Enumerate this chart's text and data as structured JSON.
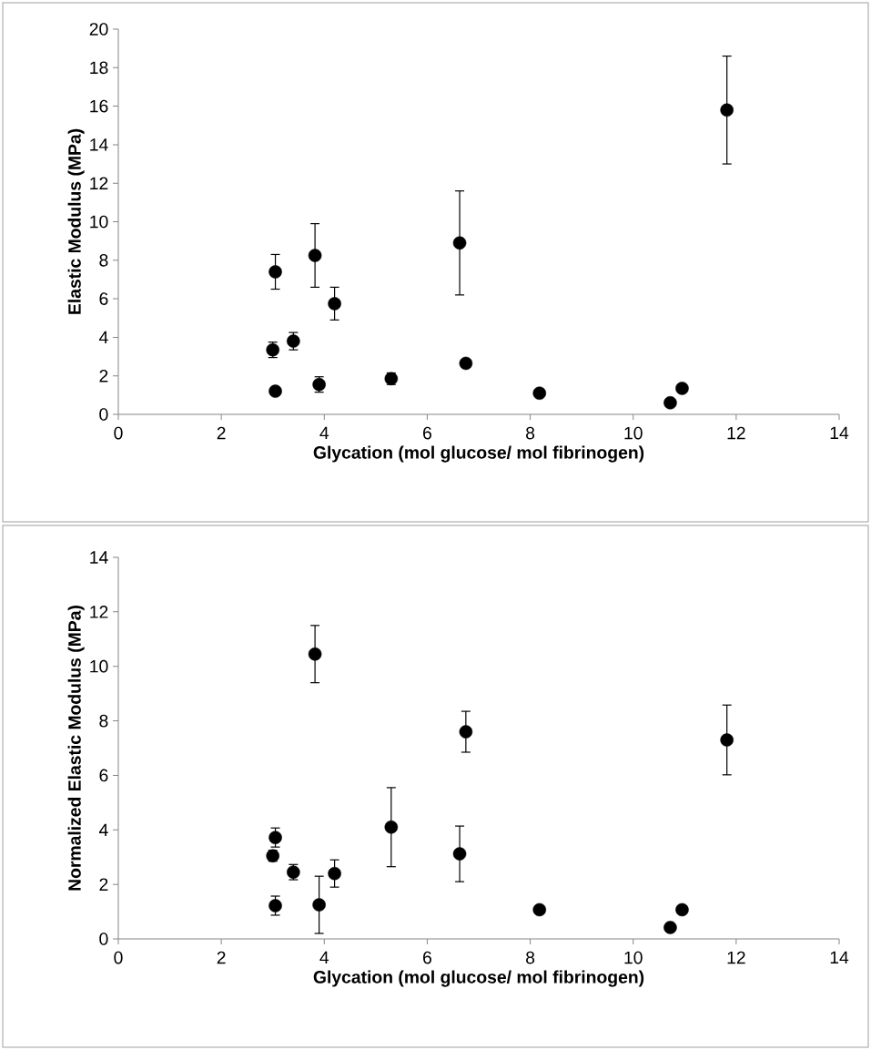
{
  "chart_data": [
    {
      "type": "scatter",
      "xlabel": "Glycation (mol glucose/ mol fibrinogen)",
      "ylabel": "Elastic Modulus (MPa)",
      "color": "#000000",
      "marker": "circle",
      "grid": false,
      "x": [
        3.0,
        3.05,
        3.05,
        3.4,
        3.82,
        3.9,
        4.2,
        5.3,
        6.63,
        6.75,
        8.18,
        10.72,
        10.95,
        11.82
      ],
      "values": [
        3.35,
        1.2,
        7.4,
        3.8,
        8.25,
        1.55,
        5.75,
        1.85,
        8.9,
        2.65,
        1.1,
        0.6,
        1.35,
        15.8
      ],
      "errors": [
        0.4,
        null,
        0.9,
        0.45,
        1.65,
        0.4,
        0.85,
        0.3,
        2.7,
        null,
        null,
        null,
        null,
        2.8
      ],
      "xlim": [
        0,
        14
      ],
      "ylim": [
        0,
        20
      ],
      "xticks": [
        0,
        2,
        4,
        6,
        8,
        10,
        12,
        14
      ],
      "yticks": [
        0,
        2,
        4,
        6,
        8,
        10,
        12,
        14,
        16,
        18,
        20
      ]
    },
    {
      "type": "scatter",
      "xlabel": "Glycation (mol glucose/ mol fibrinogen)",
      "ylabel": "Normalized Elastic Modulus (MPa)",
      "color": "#000000",
      "marker": "circle",
      "grid": false,
      "x": [
        3.0,
        3.05,
        3.05,
        3.4,
        3.82,
        3.9,
        4.2,
        5.3,
        6.63,
        6.75,
        8.18,
        10.72,
        10.95,
        11.82
      ],
      "values": [
        3.05,
        1.22,
        3.72,
        2.45,
        10.45,
        1.25,
        2.4,
        4.1,
        3.12,
        7.6,
        1.07,
        0.42,
        1.07,
        7.3
      ],
      "errors": [
        0.2,
        0.35,
        0.35,
        0.28,
        1.05,
        1.05,
        0.5,
        1.45,
        1.02,
        0.75,
        0.12,
        null,
        0.15,
        1.28
      ],
      "xlim": [
        0,
        14
      ],
      "ylim": [
        0,
        14
      ],
      "xticks": [
        0,
        2,
        4,
        6,
        8,
        10,
        12,
        14
      ],
      "yticks": [
        0,
        2,
        4,
        6,
        8,
        10,
        12,
        14
      ]
    }
  ]
}
